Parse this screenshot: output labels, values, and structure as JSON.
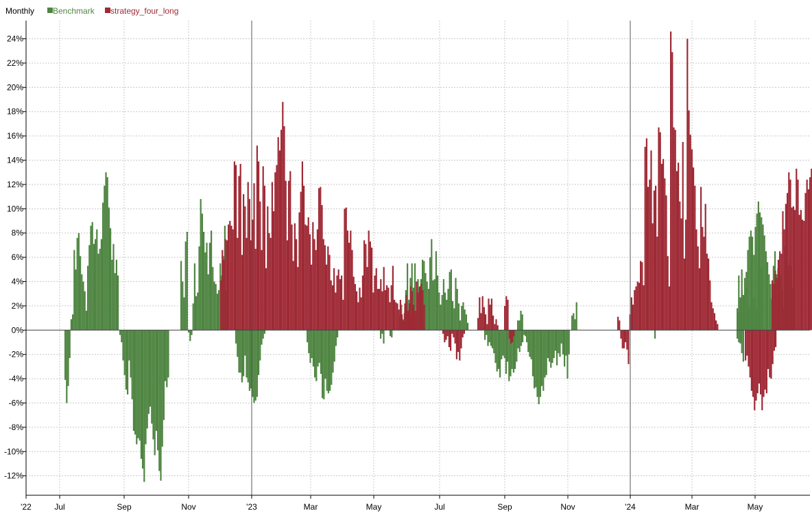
{
  "legend": {
    "period_label": "Monthly",
    "items": [
      {
        "name": "Benchmark",
        "color": "#4f8542"
      },
      {
        "name": "strategy_four_long",
        "color": "#9e2a35"
      }
    ]
  },
  "chart_data": {
    "type": "bar",
    "y_unit": "%",
    "ylim": [
      -13.6,
      25.5
    ],
    "y_ticks": [
      24,
      22,
      20,
      18,
      16,
      14,
      12,
      10,
      8,
      6,
      4,
      2,
      0,
      -2,
      -4,
      -6,
      -8,
      -10,
      -12
    ],
    "y_tick_labels": [
      "24%",
      "22%",
      "20%",
      "18%",
      "16%",
      "14%",
      "12%",
      "10%",
      "8%",
      "6%",
      "4%",
      "2%",
      "0%",
      "-2%",
      "-4%",
      "-6%",
      "-8%",
      "-10%",
      "-12%"
    ],
    "x_tick_labels": [
      "'22",
      "Jul",
      "Sep",
      "Nov",
      "'23",
      "Mar",
      "May",
      "Jul",
      "Sep",
      "Nov",
      "'24",
      "Mar",
      "May"
    ],
    "grid": true,
    "legend_position": "top-left",
    "colors": {
      "Benchmark": "#4f8542",
      "strategy_four_long": "#9e2a35"
    },
    "series": [
      {
        "name": "Benchmark",
        "color": "#4f8542",
        "segments": [
          {
            "values": [
              -4.1,
              -6.0,
              -4.6,
              -2.3,
              0.9,
              1.3,
              6.6,
              5.0,
              7.6,
              8.0,
              6.1,
              4.6,
              4.0,
              3.2,
              1.6,
              5.3,
              7.0,
              8.6,
              8.9,
              7.1,
              7.5,
              8.3,
              6.3,
              6.7,
              7.5,
              10.5,
              11.9,
              13.0,
              12.6,
              10.1,
              8.4,
              5.8,
              7.1,
              4.7,
              5.8,
              4.5
            ]
          },
          {
            "values": [
              -0.4,
              -1.0,
              -2.5,
              -3.7,
              -4.9,
              -5.3,
              -2.5,
              -3.9,
              -5.7,
              -8.3,
              -8.6,
              -9.4,
              -8.9,
              -9.1,
              -10.6,
              -11.4,
              -12.5,
              -9.4,
              -8.1,
              -6.9,
              -6.3,
              -7.7,
              -9.0,
              -10.3,
              -8.3,
              -9.9,
              -11.6,
              -12.4,
              -9.6,
              -7.4,
              -4.2,
              -4.7,
              -3.9
            ]
          },
          {
            "values": [
              5.7,
              4.0,
              2.7,
              7.3,
              8.1,
              -0.2,
              -0.9,
              -0.4,
              2.2,
              5.5,
              2.8,
              3.1,
              6.9,
              10.8,
              9.6,
              8.1,
              6.4,
              7.2,
              4.6,
              7.2,
              8.2,
              5.2,
              4.0,
              3.8,
              3.0,
              3.3,
              5.5,
              4.5,
              6.1,
              8.6,
              3.3,
              2.3
            ]
          },
          {
            "values": [
              -1.1,
              -2.2,
              -3.5,
              -3.5,
              -4.3,
              -3.8,
              -2.1,
              -3.9,
              -4.3,
              -5.0,
              -4.8,
              -5.5,
              -6.0,
              -5.8,
              -5.5,
              -3.7,
              -2.5,
              -1.2,
              -0.7,
              -0.3
            ]
          },
          {
            "values": [
              -1.0,
              -1.9,
              -2.7,
              -2.3,
              -3.0,
              -3.9,
              -4.2,
              -3.0,
              -2.7,
              -3.6,
              -5.6,
              -5.7,
              -4.0,
              -5.0,
              -5.2,
              -5.0,
              -4.5,
              -3.5,
              -2.6,
              -1.3,
              -0.6
            ]
          },
          {
            "values": [
              -0.7,
              -0.3,
              -1.1
            ]
          },
          {
            "values": [
              -0.5,
              -0.6
            ]
          },
          {
            "values": [
              1.2,
              2.1,
              0.9,
              1.4,
              3.3,
              5.5,
              2.5,
              4.3,
              5.5,
              3.5,
              5.5,
              1.2,
              4.2,
              3.5,
              4.2,
              5.8,
              5.7,
              4.7,
              4.0,
              3.4,
              6.0,
              7.5,
              4.1,
              4.2,
              6.5,
              4.5,
              3.1,
              2.1,
              2.9,
              4.2,
              3.1,
              2.5,
              3.4,
              4.8,
              5.0,
              2.4,
              1.8,
              4.3,
              3.4,
              2.2,
              0.8,
              2.0,
              2.3,
              1.7,
              1.3,
              0.6
            ]
          },
          {
            "values": [
              -0.8,
              -0.4,
              -1.3,
              -1.0,
              -1.3,
              -1.5,
              -1.9,
              -2.7,
              -3.4,
              -3.2,
              -3.9,
              -2.4,
              -2.1,
              -2.3,
              -3.6,
              -2.6,
              -4.2,
              -3.8,
              -3.2,
              -3.5,
              -3.2,
              -2.6,
              -1.5,
              -1.8,
              -1.3,
              -1.0,
              -0.4,
              -0.5
            ]
          },
          {
            "values": [
              0.8,
              0.8,
              1.6,
              1.3
            ]
          },
          {
            "values": [
              -1.0,
              -1.8,
              -2.2,
              -2.4,
              -3.8,
              -4.8,
              -4.7,
              -5.5,
              -6.1,
              -5.5,
              -4.6,
              -5.0,
              -3.9,
              -3.7,
              -2.3,
              -2.6,
              -3.1,
              -2.7,
              -2.3,
              -1.7,
              -2.9,
              -1.9,
              -2.2,
              -1.1,
              -2.0,
              -3.0,
              -2.1,
              -4.0,
              -2.0
            ]
          },
          {
            "values": [
              1.2,
              1.4,
              0.9,
              2.3
            ]
          },
          {
            "values": [
              -0.7
            ]
          },
          {
            "values": [
              1.8,
              1.5,
              2.3,
              3.3,
              2.9,
              4.3,
              4.8,
              6.6,
              7.7,
              8.2,
              7.7,
              6.2,
              8.5,
              9.6,
              10.6,
              9.7,
              9.3,
              8.7,
              7.8,
              6.5,
              5.6,
              4.6,
              3.8,
              2.6,
              5.3,
              6.5,
              4.6,
              5.1,
              3.2,
              4.5,
              3.3,
              1.8,
              6.9,
              4.5,
              5.3,
              5.6,
              5.3,
              3.5,
              4.6
            ]
          },
          {
            "values": [
              1.5,
              4.5,
              2.7,
              5.0,
              1.5,
              1.5,
              3.5,
              2.7,
              1.8,
              2.2,
              2.4,
              2.7,
              1.4,
              1.8,
              5.4,
              5.2,
              5.1
            ]
          },
          {
            "values": [
              -0.7,
              -1.0,
              -1.1,
              -1.9,
              -2.6
            ]
          }
        ]
      },
      {
        "name": "strategy_four_long",
        "color": "#9e2a35",
        "segments": [
          {
            "values": [
              4.1,
              6.6,
              5.8,
              7.5,
              7.4,
              8.7,
              9.0,
              8.6,
              8.3,
              13.9,
              13.6,
              7.6,
              12.7,
              13.7,
              6.2,
              11.2,
              10.2,
              7.6,
              12.2,
              10.8,
              7.4,
              9.1,
              12.1,
              6.7,
              15.2,
              13.9,
              10.6,
              6.6,
              13.5,
              11.9,
              5.1,
              10.2,
              8.0,
              7.6,
              12.2,
              9.8,
              13.0,
              13.6,
              15.9,
              14.8,
              16.5,
              18.8,
              16.8,
              12.3,
              7.4,
              12.3,
              13.1,
              8.7,
              5.7,
              8.8,
              7.5,
              5.2,
              9.7,
              11.4,
              13.9,
              11.9,
              8.7,
              8.6,
              9.3,
              7.9,
              5.4,
              8.9,
              7.5,
              6.6,
              8.3,
              11.7,
              11.8,
              10.3,
              7.5,
              7.0,
              5.4,
              6.9,
              6.2,
              4.1,
              3.7,
              5.1,
              3.1,
              4.5,
              5.0,
              4.2,
              4.5,
              2.5,
              10.0,
              10.1,
              8.2,
              7.2,
              8.2,
              6.6,
              4.4,
              3.8,
              3.2,
              2.3,
              3.5,
              2.7,
              4.5,
              7.4,
              7.1,
              5.2,
              8.2,
              7.3,
              6.8,
              3.1,
              4.5,
              5.1,
              3.4,
              3.4,
              4.2,
              3.2,
              5.2,
              3.3,
              3.7,
              3.5,
              2.3,
              3.7,
              5.3,
              2.5,
              2.3,
              2.2,
              1.7,
              2.5,
              1.3,
              0.7,
              2.2,
              1.1,
              1.6,
              2.2,
              1.0,
              0.9,
              1.3,
              0.6,
              0.4
            ]
          },
          {
            "values": [
              0.6,
              0.8,
              1.7,
              2.3
            ]
          },
          {
            "values": [
              2.9,
              1.5,
              1.7,
              3.6,
              3.2,
              2.1,
              1.6,
              4.0,
              3.1,
              3.6,
              3.8,
              3.3,
              2.1
            ]
          },
          {
            "values": [
              -0.3,
              -1.0,
              -0.8,
              -0.5,
              -1.4,
              -1.7,
              -0.3,
              -0.6,
              -1.1,
              -2.4,
              -1.8,
              -2.5,
              -1.5,
              -0.6,
              -0.3
            ]
          },
          {
            "values": [
              1.0,
              2.7,
              1.4,
              2.8,
              1.9,
              1.3,
              0.5,
              2.6,
              2.1,
              2.6,
              1.2,
              0.5,
              0.9,
              0.4
            ]
          },
          {
            "values": [
              2.0,
              2.8,
              2.5,
              -0.7,
              -1.1,
              -1.0,
              -0.5
            ]
          },
          {
            "values": [
              1.1,
              0.8,
              -0.7,
              -1.5,
              -1.5,
              -1.0,
              -1.6,
              -2.8,
              1.3,
              2.7,
              2.1,
              3.3,
              3.6,
              4.0,
              3.9,
              5.7,
              5.6,
              3.7,
              15.1,
              15.8,
              11.8,
              12.4,
              14.8,
              8.8,
              11.5,
              11.9,
              7.7,
              16.7,
              16.3,
              13.7,
              14.1,
              12.5,
              11.1,
              6.1,
              3.6,
              24.6,
              22.9,
              16.7,
              16.5,
              13.1,
              13.8,
              10.6,
              9.2,
              15.5,
              5.9,
              9.1,
              24.0,
              18.1,
              16.1,
              14.9,
              13.4,
              11.9,
              8.3,
              6.9,
              5.1,
              11.8,
              8.5,
              7.7,
              10.4,
              6.3,
              5.9,
              4.1,
              2.3,
              1.8,
              1.4,
              0.8,
              0.5
            ]
          },
          {
            "values": [
              -2.5,
              -2.1,
              -3.0,
              -3.9,
              -5.0,
              -5.5,
              -6.6,
              -5.8,
              -5.2,
              -4.4,
              -5.3,
              -6.6,
              -5.5,
              -4.9,
              -5.2,
              -3.2,
              -3.9,
              -4.0,
              -2.8,
              -1.7,
              -1.4
            ]
          },
          {
            "values": [
              4.1,
              3.8,
              4.9,
              4.3,
              5.8,
              6.5,
              6.3,
              9.8,
              8.3,
              10.4,
              11.3,
              13.0,
              12.4,
              10.1,
              10.2,
              9.9,
              13.3,
              12.4,
              9.5,
              9.9,
              9.1,
              9.0,
              11.3,
              12.4,
              11.6,
              12.6,
              13.3,
              12.2,
              10.5,
              9.9,
              10.2,
              10.0,
              8.6,
              7.8,
              6.3,
              5.4
            ]
          }
        ]
      }
    ]
  }
}
